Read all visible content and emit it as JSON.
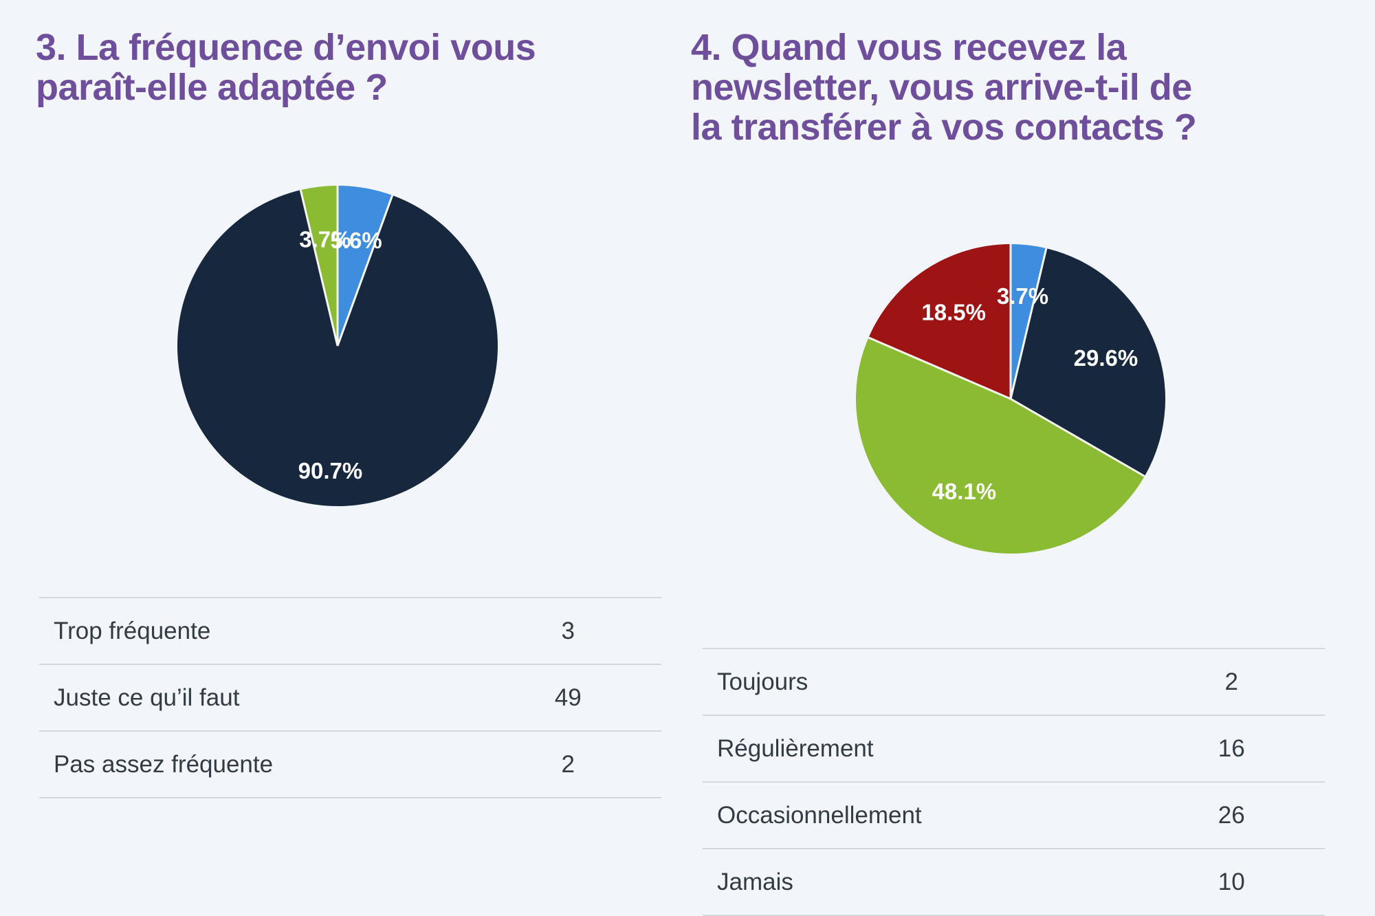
{
  "page": {
    "background_color": "#f2f5f9",
    "title_color": "#6f4f9c",
    "text_color": "#333b45",
    "separator_color": "#d4d9de"
  },
  "cards": [
    {
      "title_lines": [
        "3. La fréquence d’envoi vous",
        "paraît-elle adaptée ?"
      ],
      "chart_data": {
        "type": "pie",
        "title": "3. La fréquence d’envoi vous paraît-elle adaptée ?",
        "categories": [
          "Trop fréquente",
          "Juste ce qu’il faut",
          "Pas assez fréquente"
        ],
        "values": [
          3,
          49,
          2
        ],
        "percent_labels": [
          "5.6%",
          "90.7%",
          "3.7%"
        ],
        "colors": [
          "#3e8dde",
          "#16273e",
          "#8abb32"
        ],
        "start_angle_deg": 0,
        "direction": "clockwise",
        "slice_label_color": "#ffffff",
        "legend_position": "none"
      },
      "table": {
        "rows": [
          {
            "label": "Trop fréquente",
            "value": "3"
          },
          {
            "label": "Juste ce qu’il faut",
            "value": "49"
          },
          {
            "label": "Pas assez fréquente",
            "value": "2"
          }
        ]
      }
    },
    {
      "title_lines": [
        "4. Quand vous recevez la",
        "newsletter, vous arrive-t-il de",
        "la transférer à vos contacts ?"
      ],
      "chart_data": {
        "type": "pie",
        "title": "4. Quand vous recevez la newsletter, vous arrive-t-il de la transférer à vos contacts ?",
        "categories": [
          "Toujours",
          "Régulièrement",
          "Occasionnellement",
          "Jamais"
        ],
        "values": [
          2,
          16,
          26,
          10
        ],
        "percent_labels": [
          "3.7%",
          "29.6%",
          "48.1%",
          "18.5%"
        ],
        "colors": [
          "#3e8dde",
          "#16273e",
          "#8abb32",
          "#9e1313"
        ],
        "start_angle_deg": 0,
        "direction": "clockwise",
        "slice_label_color": "#ffffff",
        "legend_position": "none"
      },
      "table": {
        "rows": [
          {
            "label": "Toujours",
            "value": "2"
          },
          {
            "label": "Régulièrement",
            "value": "16"
          },
          {
            "label": "Occasionnellement",
            "value": "26"
          },
          {
            "label": "Jamais",
            "value": "10"
          }
        ]
      }
    }
  ]
}
